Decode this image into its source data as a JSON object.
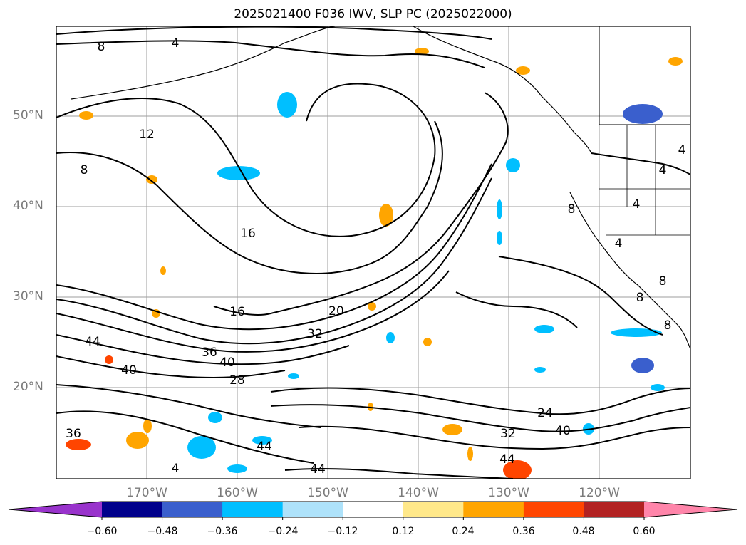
{
  "title": "2025021400 F036 IWV, SLP PC (2025022000)",
  "map": {
    "lat_labels": [
      "50°N",
      "40°N",
      "30°N",
      "20°N"
    ],
    "lon_labels": [
      "170°W",
      "160°W",
      "150°W",
      "140°W",
      "130°W",
      "120°W"
    ],
    "gridline_color": "#9e9e9e",
    "contour_labels": [
      "8",
      "4",
      "12",
      "8",
      "16",
      "16",
      "20",
      "32",
      "44",
      "40",
      "36",
      "28",
      "40",
      "36",
      "44",
      "44",
      "24",
      "32",
      "40",
      "44",
      "8",
      "4",
      "4",
      "4",
      "8",
      "8",
      "8",
      "4",
      "4"
    ],
    "anomaly_colors": {
      "strong_negative": "#3a5fcd",
      "moderate_negative": "#00bfff",
      "weak_negative": "#aee2fa",
      "weak_positive": "#ffe88a",
      "moderate_positive": "#ffa500",
      "strong_positive": "#ff4500"
    }
  },
  "colorbar": {
    "colors": [
      "#9933cc",
      "#00008b",
      "#3a5fcd",
      "#00bfff",
      "#aee2fa",
      "#ffffff",
      "#ffe88a",
      "#ffa500",
      "#ff4500",
      "#b22222",
      "#ff85aa"
    ],
    "tick_labels": [
      "−0.60",
      "−0.48",
      "−0.36",
      "−0.24",
      "−0.12",
      "0.12",
      "0.24",
      "0.36",
      "0.48",
      "0.60"
    ]
  }
}
